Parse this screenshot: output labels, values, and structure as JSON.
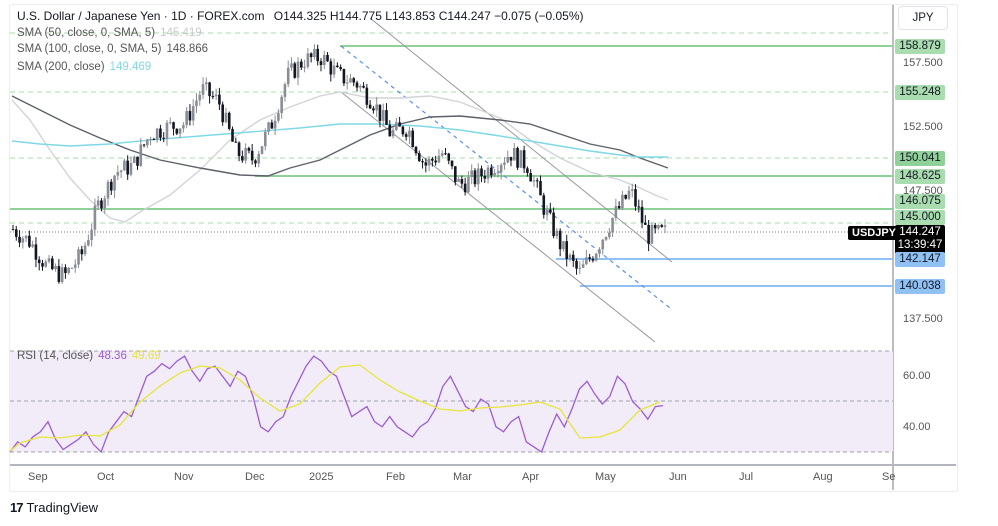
{
  "header": {
    "symbol_desc": "U.S. Dollar / Japanese Yen · 1D · FOREX.com",
    "open_label": "O",
    "open": "144.325",
    "high_label": "H",
    "high": "144.775",
    "low_label": "L",
    "low": "143.853",
    "close_label": "C",
    "close": "144.247",
    "change": "−0.075 (−0.05%)"
  },
  "indicators": {
    "sma50": {
      "label": "SMA (50, close, 0, SMA, 5)",
      "value": "145.419",
      "color": "#c7c9cf"
    },
    "sma100": {
      "label": "SMA (100, close, 0, SMA, 5)",
      "value": "148.866",
      "color": "#555555"
    },
    "sma200": {
      "label": "SMA (200, close)",
      "value": "149.469",
      "color": "#7fd8e6"
    },
    "rsi": {
      "label": "RSI (14, close)",
      "value": "48.36",
      "ma_value": "49.69",
      "color": "#9c5cd6",
      "ma_color": "#e6e63a"
    }
  },
  "price_axis": {
    "currency": "JPY",
    "ticks": [
      "157.500",
      "152.500",
      "147.500",
      "137.500"
    ],
    "rsi_ticks": [
      "60.00",
      "40.00"
    ]
  },
  "price_tags": {
    "level_158": "158.879",
    "level_155": "155.248",
    "level_150": "150.041",
    "level_148": "148.625",
    "level_146": "146.075",
    "level_145": "145.000",
    "current": "144.247",
    "countdown": "13:39:47",
    "level_142": "142.147",
    "level_140": "140.038"
  },
  "symbol_tag": "USDJPY",
  "time_axis": [
    "Sep",
    "Oct",
    "Nov",
    "Dec",
    "2025",
    "Feb",
    "Mar",
    "Apr",
    "May",
    "Jun",
    "Jul",
    "Aug",
    "Se"
  ],
  "brand": "TradingView",
  "chart_data": {
    "type": "candlestick",
    "title": "U.S. Dollar / Japanese Yen · 1D · FOREX.com",
    "ylabel": "JPY",
    "ylim": [
      137.0,
      159.5
    ],
    "x_labels": [
      "Sep",
      "Oct",
      "Nov",
      "Dec",
      "2025",
      "Feb",
      "Mar",
      "Apr",
      "May",
      "Jun",
      "Jul",
      "Aug",
      "Sep"
    ],
    "horizontal_levels": {
      "solid_green": [
        158.879,
        148.625,
        146.075
      ],
      "dashed_green": [
        155.248,
        150.041,
        145.0
      ],
      "solid_blue": [
        142.147,
        140.038
      ]
    },
    "last": {
      "open": 144.325,
      "high": 144.775,
      "low": 143.853,
      "close": 144.247,
      "change": -0.075,
      "change_pct": -0.05
    },
    "approx_close_path": [
      {
        "date": "2024-08-26",
        "close": 144.5
      },
      {
        "date": "2024-09-02",
        "close": 143.5
      },
      {
        "date": "2024-09-09",
        "close": 141.5
      },
      {
        "date": "2024-09-16",
        "close": 140.8
      },
      {
        "date": "2024-09-23",
        "close": 142.5
      },
      {
        "date": "2024-09-30",
        "close": 146.5
      },
      {
        "date": "2024-10-07",
        "close": 149.0
      },
      {
        "date": "2024-10-14",
        "close": 149.5
      },
      {
        "date": "2024-10-21",
        "close": 152.0
      },
      {
        "date": "2024-10-28",
        "close": 152.5
      },
      {
        "date": "2024-11-04",
        "close": 152.8
      },
      {
        "date": "2024-11-11",
        "close": 155.5
      },
      {
        "date": "2024-11-18",
        "close": 154.5
      },
      {
        "date": "2024-11-25",
        "close": 150.5
      },
      {
        "date": "2024-12-02",
        "close": 150.0
      },
      {
        "date": "2024-12-09",
        "close": 152.5
      },
      {
        "date": "2024-12-16",
        "close": 156.5
      },
      {
        "date": "2024-12-23",
        "close": 157.8
      },
      {
        "date": "2025-01-06",
        "close": 158.0
      },
      {
        "date": "2025-01-13",
        "close": 156.5
      },
      {
        "date": "2025-01-20",
        "close": 156.0
      },
      {
        "date": "2025-01-27",
        "close": 154.5
      },
      {
        "date": "2025-02-03",
        "close": 152.0
      },
      {
        "date": "2025-02-10",
        "close": 152.5
      },
      {
        "date": "2025-02-17",
        "close": 149.5
      },
      {
        "date": "2025-02-24",
        "close": 150.5
      },
      {
        "date": "2025-03-03",
        "close": 148.0
      },
      {
        "date": "2025-03-10",
        "close": 148.5
      },
      {
        "date": "2025-03-17",
        "close": 149.5
      },
      {
        "date": "2025-03-24",
        "close": 150.5
      },
      {
        "date": "2025-03-31",
        "close": 149.5
      },
      {
        "date": "2025-04-07",
        "close": 146.0
      },
      {
        "date": "2025-04-14",
        "close": 143.0
      },
      {
        "date": "2025-04-21",
        "close": 141.0
      },
      {
        "date": "2025-04-28",
        "close": 143.0
      },
      {
        "date": "2025-05-05",
        "close": 145.5
      },
      {
        "date": "2025-05-12",
        "close": 147.5
      },
      {
        "date": "2025-05-19",
        "close": 144.0
      },
      {
        "date": "2025-05-26",
        "close": 144.247
      }
    ],
    "series": [
      {
        "name": "SMA 50",
        "last": 145.419
      },
      {
        "name": "SMA 100",
        "last": 148.866
      },
      {
        "name": "SMA 200",
        "last": 149.469
      }
    ],
    "rsi": {
      "name": "RSI (14, close)",
      "last": 48.36,
      "ma_last": 49.69,
      "ylim": [
        20,
        80
      ],
      "bands": [
        70,
        50,
        30
      ],
      "approx_values": [
        30,
        34,
        32,
        36,
        38,
        42,
        35,
        31,
        33,
        35,
        38,
        33,
        30,
        38,
        42,
        46,
        44,
        52,
        60,
        62,
        65,
        63,
        66,
        68,
        62,
        58,
        63,
        64,
        60,
        56,
        62,
        60,
        52,
        40,
        38,
        42,
        44,
        52,
        58,
        64,
        68,
        66,
        62,
        60,
        52,
        44,
        46,
        48,
        42,
        40,
        44,
        40,
        38,
        36,
        40,
        42,
        47,
        56,
        60,
        54,
        48,
        46,
        51,
        49,
        40,
        38,
        42,
        44,
        34,
        32,
        30,
        38,
        45,
        40,
        47,
        55,
        58,
        53,
        49,
        52,
        60,
        57,
        50,
        47,
        43,
        48,
        48.36
      ]
    }
  }
}
